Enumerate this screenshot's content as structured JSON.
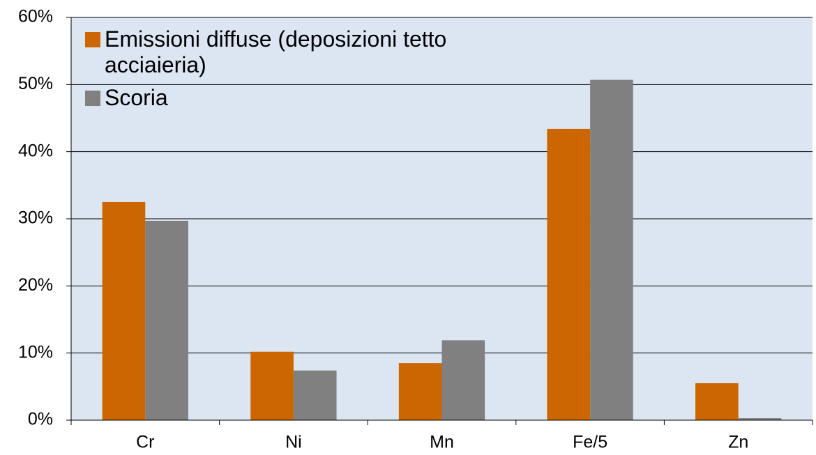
{
  "chart_data": {
    "type": "bar",
    "categories": [
      "Cr",
      "Ni",
      "Mn",
      "Fe/5",
      "Zn"
    ],
    "series": [
      {
        "name": "Emissioni diffuse (deposizioni tetto acciaieria)",
        "color": "#cc6600",
        "values": [
          32.5,
          10.2,
          8.5,
          43.4,
          5.5
        ]
      },
      {
        "name": "Scoria",
        "color": "#808080",
        "values": [
          29.7,
          7.4,
          11.9,
          50.7,
          0.3
        ]
      }
    ],
    "ylim": [
      0,
      60
    ],
    "yticks": [
      {
        "value": 0,
        "label": "0%"
      },
      {
        "value": 10,
        "label": "10%"
      },
      {
        "value": 20,
        "label": "20%"
      },
      {
        "value": 30,
        "label": "30%"
      },
      {
        "value": 40,
        "label": "40%"
      },
      {
        "value": 50,
        "label": "50%"
      },
      {
        "value": 60,
        "label": "60%"
      }
    ],
    "grid": true,
    "legend": "upper left",
    "background": "#dce6f2"
  }
}
